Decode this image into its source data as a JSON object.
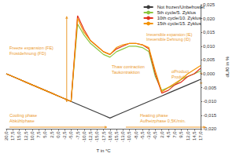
{
  "chart_data": {
    "type": "line",
    "x_label": "T in °C",
    "y_label": "dL/l0 in %",
    "categories": [
      "20,0",
      "17,5",
      "15,0",
      "12,5",
      "10,0",
      "7,5",
      "5,0",
      "2,5",
      "0,0",
      "-2,5",
      "-5,0",
      "-7,5",
      "-10,0",
      "-12,5",
      "-15,0",
      "-17,5",
      "-18,0",
      "-15,5",
      "-13,0",
      "-10,5",
      "-8,0",
      "-5,5",
      "-3,0",
      "-0,5",
      "2,0",
      "4,5",
      "7,0",
      "9,5",
      "12,0",
      "14,5",
      "17,0"
    ],
    "series": [
      {
        "name": "Not frozen/Unbefrostet",
        "color": "#3c3c3c",
        "values": [
          0.0,
          -0.001,
          -0.002,
          -0.003,
          -0.004,
          -0.005,
          -0.006,
          -0.007,
          -0.008,
          -0.009,
          -0.01,
          -0.011,
          -0.012,
          -0.013,
          -0.014,
          -0.015,
          -0.016,
          -0.015,
          -0.014,
          -0.013,
          -0.012,
          -0.011,
          -0.01,
          -0.009,
          -0.008,
          -0.007,
          -0.006,
          -0.005,
          -0.004,
          -0.003,
          -0.002
        ]
      },
      {
        "name": "5th cycle/5. Zyklus",
        "color": "#8cc63f",
        "values": [
          0.0,
          -0.001,
          -0.002,
          -0.003,
          -0.004,
          -0.005,
          -0.006,
          -0.007,
          -0.008,
          -0.009,
          -0.01,
          0.018,
          0.014,
          0.011,
          0.009,
          0.007,
          0.006,
          0.008,
          0.009,
          0.01,
          0.01,
          0.0095,
          0.008,
          -0.001,
          -0.006,
          -0.005,
          -0.004,
          -0.002,
          -0.001,
          0.0,
          0.001
        ]
      },
      {
        "name": "10th cycle/10. Zyklus",
        "color": "#e2311d",
        "values": [
          0.0,
          -0.001,
          -0.002,
          -0.003,
          -0.004,
          -0.005,
          -0.006,
          -0.007,
          -0.008,
          -0.009,
          -0.01,
          0.021,
          0.016,
          0.012,
          0.01,
          0.008,
          0.007,
          0.009,
          0.01,
          0.011,
          0.011,
          0.0105,
          0.009,
          0.0,
          -0.007,
          -0.006,
          -0.004,
          -0.003,
          -0.001,
          0.0,
          0.002
        ]
      },
      {
        "name": "15th cycle/15. Zyklus",
        "color": "#f39200",
        "values": [
          0.0,
          -0.001,
          -0.002,
          -0.003,
          -0.004,
          -0.005,
          -0.006,
          -0.007,
          -0.008,
          -0.009,
          -0.01,
          0.02,
          0.015,
          0.012,
          0.01,
          0.008,
          0.007,
          0.0095,
          0.0105,
          0.011,
          0.011,
          0.0105,
          0.0095,
          0.001,
          -0.0065,
          -0.005,
          -0.0035,
          -0.002,
          0.0,
          0.0015,
          0.003
        ]
      }
    ],
    "ylim": [
      -0.02,
      0.025
    ],
    "yticks": [
      {
        "value": -0.02,
        "label": "-0,020"
      },
      {
        "value": -0.015,
        "label": "-0,015"
      },
      {
        "value": -0.01,
        "label": "-0,010"
      },
      {
        "value": -0.005,
        "label": "-0,005"
      },
      {
        "value": 0,
        "label": "0,000"
      },
      {
        "value": 0.005,
        "label": "0,005"
      },
      {
        "value": 0.01,
        "label": "0,010"
      },
      {
        "value": 0.015,
        "label": "0,015"
      },
      {
        "value": 0.02,
        "label": "0,020"
      },
      {
        "value": 0.025,
        "label": "0,025"
      }
    ],
    "grid": false,
    "legend": "top-right",
    "annotations": [
      {
        "text": "Freeze expansion (FE)\nFrostdehnung (FD)"
      },
      {
        "text": "Thaw contraction\nTaukontraktion"
      },
      {
        "text": "Irreversible expansion (IE)\nIrreversible Dehnung (ID)"
      },
      {
        "text": "αProduct\nProdukt"
      },
      {
        "text": "Cooling phase\nAbkühlphase"
      },
      {
        "text": "Heating phase\nAufheizphase 0,5K/min."
      }
    ]
  }
}
